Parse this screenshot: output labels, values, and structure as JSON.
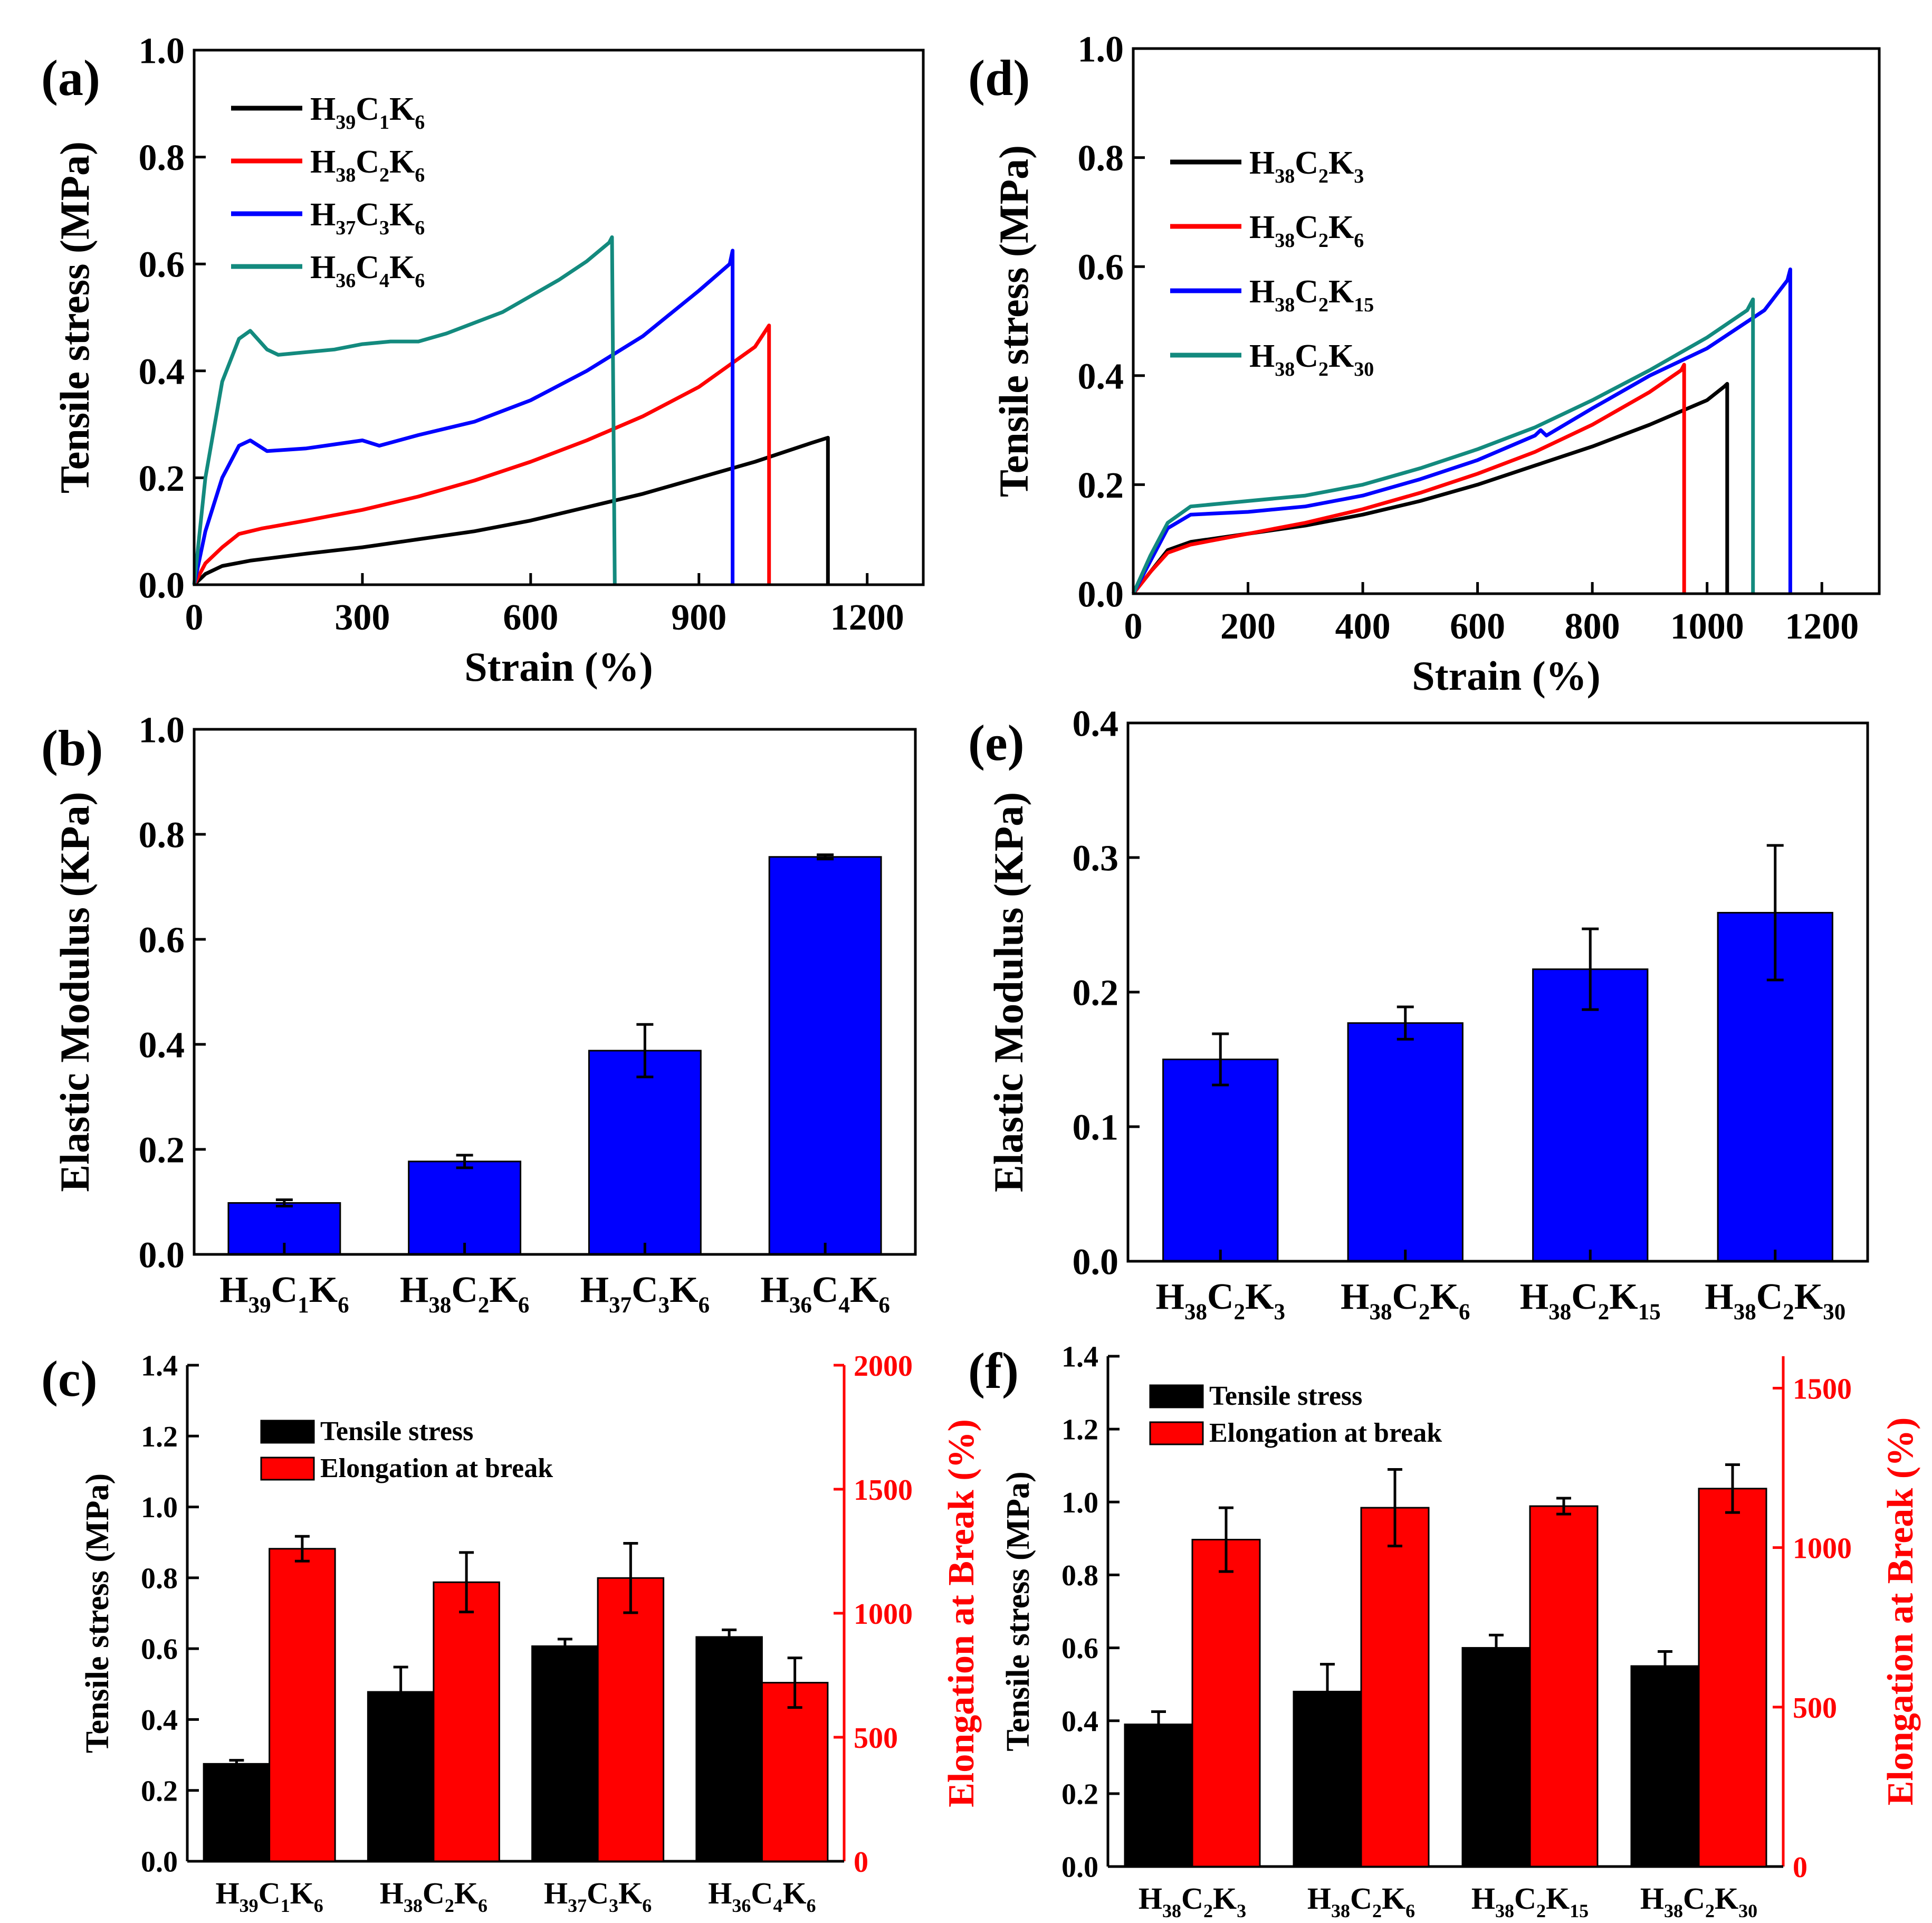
{
  "colors": {
    "black": "#000000",
    "red": "#ff0000",
    "blue": "#0000ff",
    "teal": "#138a7e",
    "bar_blue": "#0000ff",
    "bar_black": "#000000",
    "bar_red": "#ff0000"
  },
  "chart_data": [
    {
      "id": "a",
      "panel_label": "(a)",
      "type": "line",
      "xlabel": "Strain (%)",
      "ylabel": "Tensile stress (MPa)",
      "xlim": [
        0,
        1300
      ],
      "ylim": [
        0,
        1.0
      ],
      "xticks": [
        0,
        300,
        600,
        900,
        1200
      ],
      "yticks": [
        0.0,
        0.2,
        0.4,
        0.6,
        0.8,
        1.0
      ],
      "xtick_labels": [
        "0",
        "300",
        "600",
        "900",
        "1200"
      ],
      "ytick_labels": [
        "0.0",
        "0.2",
        "0.4",
        "0.6",
        "0.8",
        "1.0"
      ],
      "legend": "top-left",
      "series": [
        {
          "name": "H39C1K6",
          "label": {
            "main": "H",
            "sub1": "39",
            "mid": "C",
            "sub2": "1",
            "end": "K",
            "sub3": "6"
          },
          "color": "#000000",
          "x": [
            0,
            20,
            50,
            100,
            200,
            300,
            400,
            500,
            600,
            700,
            800,
            900,
            1000,
            1100,
            1130,
            1130
          ],
          "y": [
            0,
            0.02,
            0.035,
            0.045,
            0.058,
            0.07,
            0.085,
            0.1,
            0.12,
            0.145,
            0.17,
            0.2,
            0.23,
            0.265,
            0.275,
            0
          ]
        },
        {
          "name": "H38C2K6",
          "label": {
            "main": "H",
            "sub1": "38",
            "mid": "C",
            "sub2": "2",
            "end": "K",
            "sub3": "6"
          },
          "color": "#ff0000",
          "x": [
            0,
            20,
            50,
            80,
            120,
            200,
            300,
            400,
            500,
            600,
            700,
            800,
            900,
            1000,
            1025,
            1025
          ],
          "y": [
            0,
            0.04,
            0.07,
            0.095,
            0.105,
            0.12,
            0.14,
            0.165,
            0.195,
            0.23,
            0.27,
            0.315,
            0.37,
            0.445,
            0.485,
            0
          ]
        },
        {
          "name": "H37C3K6",
          "label": {
            "main": "H",
            "sub1": "37",
            "mid": "C",
            "sub2": "3",
            "end": "K",
            "sub3": "6"
          },
          "color": "#0000ff",
          "x": [
            0,
            20,
            50,
            80,
            100,
            130,
            200,
            300,
            330,
            400,
            500,
            600,
            700,
            800,
            900,
            955,
            960,
            960
          ],
          "y": [
            0,
            0.1,
            0.2,
            0.26,
            0.27,
            0.25,
            0.255,
            0.27,
            0.26,
            0.28,
            0.305,
            0.345,
            0.4,
            0.465,
            0.55,
            0.6,
            0.625,
            0
          ]
        },
        {
          "name": "H36C4K6",
          "label": {
            "main": "H",
            "sub1": "36",
            "mid": "C",
            "sub2": "4",
            "end": "K",
            "sub3": "6"
          },
          "color": "#138a7e",
          "x": [
            0,
            20,
            50,
            80,
            100,
            130,
            150,
            200,
            250,
            300,
            350,
            400,
            450,
            500,
            550,
            600,
            650,
            700,
            740,
            745,
            750
          ],
          "y": [
            0,
            0.2,
            0.38,
            0.46,
            0.475,
            0.44,
            0.43,
            0.435,
            0.44,
            0.45,
            0.455,
            0.455,
            0.47,
            0.49,
            0.51,
            0.54,
            0.57,
            0.605,
            0.64,
            0.65,
            0
          ]
        }
      ]
    },
    {
      "id": "b",
      "panel_label": "(b)",
      "type": "bar",
      "ylabel": "Elastic Modulus (KPa)",
      "ylim": [
        0,
        1.0
      ],
      "yticks": [
        0.0,
        0.2,
        0.4,
        0.6,
        0.8,
        1.0
      ],
      "ytick_labels": [
        "0.0",
        "0.2",
        "0.4",
        "0.6",
        "0.8",
        "1.0"
      ],
      "categories": [
        {
          "name": "H39C1K6",
          "main": "H",
          "sub1": "39",
          "mid": "C",
          "sub2": "1",
          "end": "K",
          "sub3": "6"
        },
        {
          "name": "H38C2K6",
          "main": "H",
          "sub1": "38",
          "mid": "C",
          "sub2": "2",
          "end": "K",
          "sub3": "6"
        },
        {
          "name": "H37C3K6",
          "main": "H",
          "sub1": "37",
          "mid": "C",
          "sub2": "3",
          "end": "K",
          "sub3": "6"
        },
        {
          "name": "H36C4K6",
          "main": "H",
          "sub1": "36",
          "mid": "C",
          "sub2": "4",
          "end": "K",
          "sub3": "6"
        }
      ],
      "values": [
        0.098,
        0.177,
        0.388,
        0.757
      ],
      "errors": [
        0.006,
        0.012,
        0.05,
        0.004
      ]
    },
    {
      "id": "c",
      "panel_label": "(c)",
      "type": "bar",
      "ylabel": "Tensile stress (MPa)",
      "y2label": "Elongation at Break (%)",
      "ylim": [
        0,
        1.4
      ],
      "y2lim": [
        0,
        2000
      ],
      "yticks": [
        0.0,
        0.2,
        0.4,
        0.6,
        0.8,
        1.0,
        1.2,
        1.4
      ],
      "ytick_labels": [
        "0.0",
        "0.2",
        "0.4",
        "0.6",
        "0.8",
        "1.0",
        "1.2",
        "1.4"
      ],
      "y2ticks": [
        0,
        500,
        1000,
        1500,
        2000
      ],
      "y2tick_labels": [
        "0",
        "500",
        "1000",
        "1500",
        "2000"
      ],
      "legend": "top-left",
      "categories": [
        {
          "name": "H39C1K6",
          "main": "H",
          "sub1": "39",
          "mid": "C",
          "sub2": "1",
          "end": "K",
          "sub3": "6"
        },
        {
          "name": "H38C2K6",
          "main": "H",
          "sub1": "38",
          "mid": "C",
          "sub2": "2",
          "end": "K",
          "sub3": "6"
        },
        {
          "name": "H37C3K6",
          "main": "H",
          "sub1": "37",
          "mid": "C",
          "sub2": "3",
          "end": "K",
          "sub3": "6"
        },
        {
          "name": "H36C4K6",
          "main": "H",
          "sub1": "36",
          "mid": "C",
          "sub2": "4",
          "end": "K",
          "sub3": "6"
        }
      ],
      "series": [
        {
          "name": "Tensile stress",
          "axis": "left",
          "color": "#000000",
          "values": [
            0.275,
            0.478,
            0.607,
            0.633
          ],
          "errors": [
            0.01,
            0.07,
            0.02,
            0.02
          ]
        },
        {
          "name": "Elongation at break",
          "axis": "right",
          "color": "#ff0000",
          "values": [
            1260,
            1125,
            1142,
            720
          ],
          "errors": [
            50,
            120,
            140,
            100
          ]
        }
      ]
    },
    {
      "id": "d",
      "panel_label": "(d)",
      "type": "line",
      "xlabel": "Strain (%)",
      "ylabel": "Tensile stress (MPa)",
      "xlim": [
        0,
        1300
      ],
      "ylim": [
        0,
        1.0
      ],
      "xticks": [
        0,
        200,
        400,
        600,
        800,
        1000,
        1200
      ],
      "yticks": [
        0.0,
        0.2,
        0.4,
        0.6,
        0.8,
        1.0
      ],
      "xtick_labels": [
        "0",
        "200",
        "400",
        "600",
        "800",
        "1000",
        "1200"
      ],
      "ytick_labels": [
        "0.0",
        "0.2",
        "0.4",
        "0.6",
        "0.8",
        "1.0"
      ],
      "legend": "top-left",
      "series": [
        {
          "name": "H38C2K3",
          "label": {
            "main": "H",
            "sub1": "38",
            "mid": "C",
            "sub2": "2",
            "end": "K",
            "sub3": "3"
          },
          "color": "#000000",
          "x": [
            0,
            30,
            60,
            100,
            200,
            300,
            400,
            500,
            600,
            700,
            800,
            900,
            1000,
            1030,
            1035,
            1035
          ],
          "y": [
            0,
            0.04,
            0.08,
            0.095,
            0.11,
            0.125,
            0.145,
            0.17,
            0.2,
            0.235,
            0.27,
            0.31,
            0.355,
            0.38,
            0.385,
            0
          ]
        },
        {
          "name": "H38C2K6",
          "label": {
            "main": "H",
            "sub1": "38",
            "mid": "C",
            "sub2": "2",
            "end": "K",
            "sub3": "6"
          },
          "color": "#ff0000",
          "x": [
            0,
            30,
            60,
            100,
            200,
            300,
            400,
            500,
            600,
            700,
            800,
            900,
            955,
            960,
            960
          ],
          "y": [
            0,
            0.04,
            0.075,
            0.09,
            0.11,
            0.13,
            0.155,
            0.185,
            0.22,
            0.26,
            0.31,
            0.37,
            0.41,
            0.42,
            0
          ]
        },
        {
          "name": "H38C2K15",
          "label": {
            "main": "H",
            "sub1": "38",
            "mid": "C",
            "sub2": "2",
            "end": "K",
            "sub3": "15"
          },
          "color": "#0000ff",
          "x": [
            0,
            30,
            60,
            100,
            200,
            300,
            400,
            500,
            600,
            700,
            710,
            720,
            800,
            900,
            1000,
            1100,
            1140,
            1145,
            1145
          ],
          "y": [
            0,
            0.06,
            0.12,
            0.145,
            0.15,
            0.16,
            0.18,
            0.21,
            0.245,
            0.29,
            0.3,
            0.29,
            0.34,
            0.4,
            0.45,
            0.52,
            0.575,
            0.595,
            0
          ]
        },
        {
          "name": "H38C2K30",
          "label": {
            "main": "H",
            "sub1": "38",
            "mid": "C",
            "sub2": "2",
            "end": "K",
            "sub3": "30"
          },
          "color": "#138a7e",
          "x": [
            0,
            30,
            60,
            100,
            200,
            300,
            400,
            500,
            600,
            700,
            800,
            900,
            1000,
            1070,
            1080,
            1080
          ],
          "y": [
            0,
            0.07,
            0.13,
            0.16,
            0.17,
            0.18,
            0.2,
            0.23,
            0.265,
            0.305,
            0.355,
            0.41,
            0.47,
            0.52,
            0.54,
            0
          ]
        }
      ]
    },
    {
      "id": "e",
      "panel_label": "(e)",
      "type": "bar",
      "ylabel": "Elastic Modulus (KPa)",
      "ylim": [
        0,
        0.4
      ],
      "yticks": [
        0.0,
        0.1,
        0.2,
        0.3,
        0.4
      ],
      "ytick_labels": [
        "0.0",
        "0.1",
        "0.2",
        "0.3",
        "0.4"
      ],
      "categories": [
        {
          "name": "H38C2K3",
          "main": "H",
          "sub1": "38",
          "mid": "C",
          "sub2": "2",
          "end": "K",
          "sub3": "3"
        },
        {
          "name": "H38C2K6",
          "main": "H",
          "sub1": "38",
          "mid": "C",
          "sub2": "2",
          "end": "K",
          "sub3": "6"
        },
        {
          "name": "H38C2K15",
          "main": "H",
          "sub1": "38",
          "mid": "C",
          "sub2": "2",
          "end": "K",
          "sub3": "15"
        },
        {
          "name": "H38C2K30",
          "main": "H",
          "sub1": "38",
          "mid": "C",
          "sub2": "2",
          "end": "K",
          "sub3": "30"
        }
      ],
      "values": [
        0.15,
        0.177,
        0.217,
        0.259
      ],
      "errors": [
        0.019,
        0.012,
        0.03,
        0.05
      ]
    },
    {
      "id": "f",
      "panel_label": "(f)",
      "type": "bar",
      "ylabel": "Tensile stress (MPa)",
      "y2label": "Elongation at Break (%)",
      "ylim": [
        0,
        1.4
      ],
      "y2lim": [
        0,
        1600
      ],
      "yticks": [
        0.0,
        0.2,
        0.4,
        0.6,
        0.8,
        1.0,
        1.2,
        1.4
      ],
      "ytick_labels": [
        "0.0",
        "0.2",
        "0.4",
        "0.6",
        "0.8",
        "1.0",
        "1.2",
        "1.4"
      ],
      "y2ticks": [
        0,
        500,
        1000,
        1500
      ],
      "y2tick_labels": [
        "0",
        "500",
        "1000",
        "1500"
      ],
      "legend": "top-left",
      "categories": [
        {
          "name": "H38C2K3",
          "main": "H",
          "sub1": "38",
          "mid": "C",
          "sub2": "2",
          "end": "K",
          "sub3": "3"
        },
        {
          "name": "H38C2K6",
          "main": "H",
          "sub1": "38",
          "mid": "C",
          "sub2": "2",
          "end": "K",
          "sub3": "6"
        },
        {
          "name": "H38C2K15",
          "main": "H",
          "sub1": "38",
          "mid": "C",
          "sub2": "2",
          "end": "K",
          "sub3": "15"
        },
        {
          "name": "H38C2K30",
          "main": "H",
          "sub1": "38",
          "mid": "C",
          "sub2": "2",
          "end": "K",
          "sub3": "30"
        }
      ],
      "series": [
        {
          "name": "Tensile stress",
          "axis": "left",
          "color": "#000000",
          "values": [
            0.39,
            0.48,
            0.6,
            0.55
          ],
          "errors": [
            0.035,
            0.075,
            0.035,
            0.04
          ]
        },
        {
          "name": "Elongation at break",
          "axis": "right",
          "color": "#ff0000",
          "values": [
            1025,
            1125,
            1130,
            1185
          ],
          "errors": [
            100,
            120,
            25,
            75
          ]
        }
      ]
    }
  ]
}
